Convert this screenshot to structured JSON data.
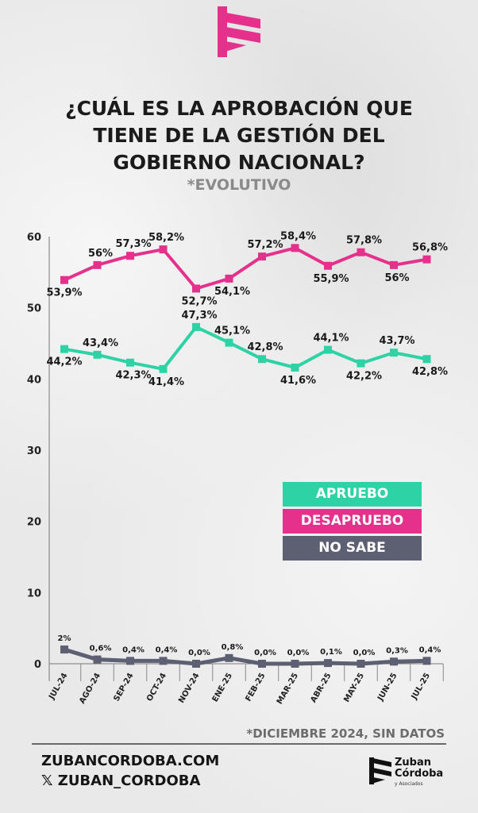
{
  "header": {
    "title_lines": [
      "¿CUÁL ES LA APROBACIÓN QUE",
      "TIENE DE LA GESTIÓN DEL",
      "GOBIERNO NACIONAL?"
    ],
    "subtitle": "*EVOLUTIVO"
  },
  "chart_data": {
    "type": "line",
    "title": "¿CUÁL ES LA APROBACIÓN QUE TIENE DE LA GESTIÓN DEL GOBIERNO NACIONAL?",
    "categories": [
      "JUL-24",
      "AGO-24",
      "SEP-24",
      "OCT-24",
      "NOV-24",
      "ENE-25",
      "FEB-25",
      "MAR-25",
      "ABR-25",
      "MAY-25",
      "JUN-25",
      "JUL-25"
    ],
    "yticks": [
      0,
      10,
      20,
      30,
      40,
      50,
      60
    ],
    "ylim": [
      0,
      60
    ],
    "series": [
      {
        "name": "DESAPRUEBO",
        "color": "#e5318b",
        "values": [
          53.9,
          56,
          57.3,
          58.2,
          52.7,
          54.1,
          57.2,
          58.4,
          55.9,
          57.8,
          56,
          56.8
        ],
        "labels": [
          "53,9%",
          "56%",
          "57,3%",
          "58,2%",
          "52,7%",
          "54,1%",
          "57,2%",
          "58,4%",
          "55,9%",
          "57,8%",
          "56%",
          "56,8%"
        ]
      },
      {
        "name": "APRUEBO",
        "color": "#2ed3a5",
        "values": [
          44.2,
          43.4,
          42.3,
          41.4,
          47.3,
          45.1,
          42.8,
          41.6,
          44.1,
          42.2,
          43.7,
          42.8
        ],
        "labels": [
          "44,2%",
          "43,4%",
          "42,3%",
          "41,4%",
          "47,3%",
          "45,1%",
          "42,8%",
          "41,6%",
          "44,1%",
          "42,2%",
          "43,7%",
          "42,8%"
        ]
      },
      {
        "name": "NO SABE",
        "color": "#5d6072",
        "values": [
          2,
          0.6,
          0.4,
          0.4,
          0.0,
          0.8,
          0.0,
          0.0,
          0.1,
          0.0,
          0.3,
          0.4
        ],
        "labels": [
          "2%",
          "0,6%",
          "0,4%",
          "0,4%",
          "0,0%",
          "0,8%",
          "0,0%",
          "0,0%",
          "0,1%",
          "0,0%",
          "0,3%",
          "0,4%"
        ]
      }
    ],
    "legend": [
      "APRUEBO",
      "DESAPRUEBO",
      "NO SABE"
    ],
    "legend_position": "center-right",
    "note": "*DICIEMBRE 2024, SIN DATOS"
  },
  "footer": {
    "website": "ZUBANCORDOBA.COM",
    "social": "𝕏 ZUBAN_CORDOBA",
    "brand_name_1": "Zuban",
    "brand_name_2": "Córdoba",
    "brand_sub": "y Asociados"
  }
}
